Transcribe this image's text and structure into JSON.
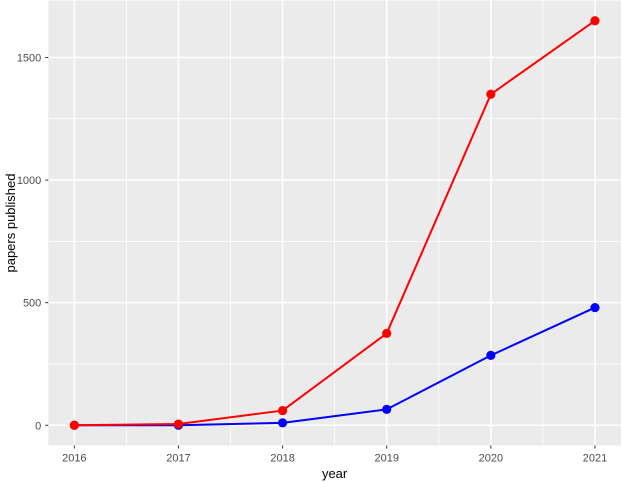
{
  "chart_data": {
    "type": "line",
    "x": [
      2016,
      2017,
      2018,
      2019,
      2020,
      2021
    ],
    "series": [
      {
        "name": "blue",
        "color": "#0000ff",
        "values": [
          0,
          0,
          10,
          65,
          285,
          480
        ]
      },
      {
        "name": "red",
        "color": "#ff0000",
        "values": [
          0,
          5,
          60,
          375,
          1350,
          1650
        ]
      }
    ],
    "title": "",
    "xlabel": "year",
    "ylabel": "papers published",
    "x_tick_labels": [
      "2016",
      "2017",
      "2018",
      "2019",
      "2020",
      "2021"
    ],
    "y_ticks": [
      0,
      500,
      1000,
      1500
    ],
    "xlim": [
      2015.75,
      2021.25
    ],
    "ylim": [
      -82.5,
      1732.5
    ],
    "grid": "major+minor",
    "legend": "none",
    "panel_bg": "#ebebeb",
    "grid_color": "#ffffff",
    "tick_color": "#333333"
  }
}
